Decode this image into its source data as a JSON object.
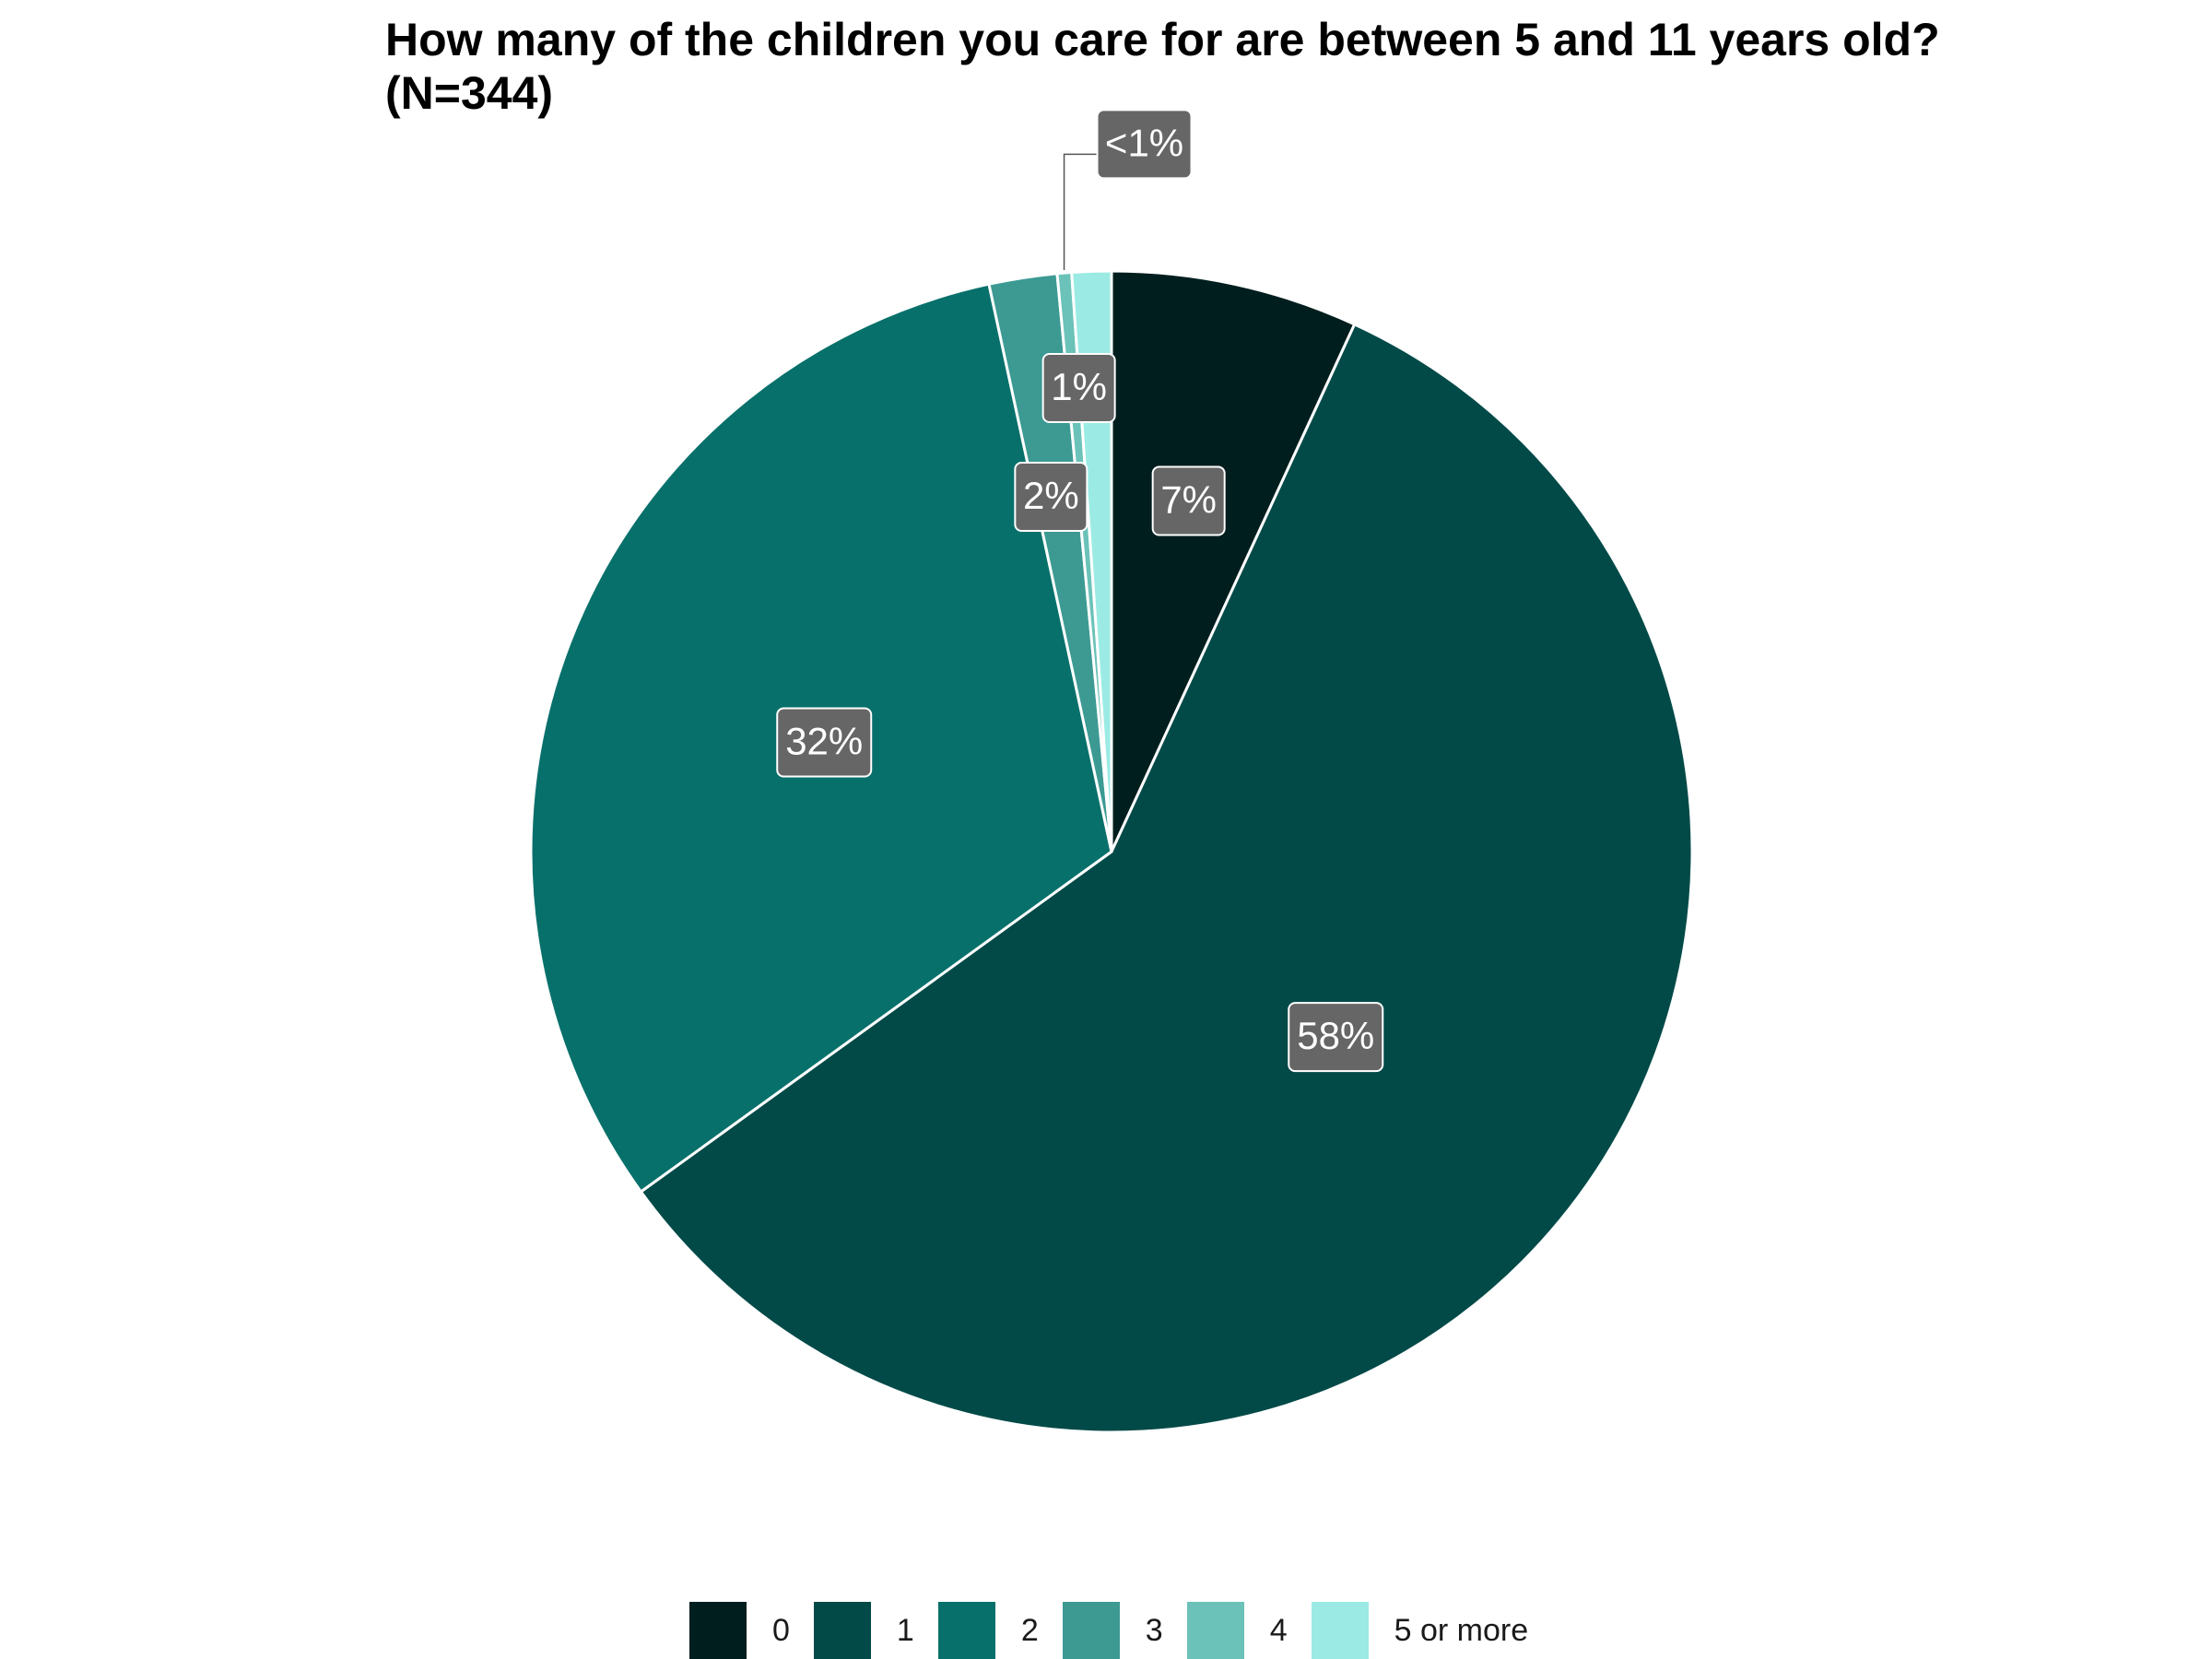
{
  "chart_data": {
    "type": "pie",
    "title": "How many of the children you care for are between 5 and 11 years old? (N=344)",
    "legend_position": "bottom",
    "slices": [
      {
        "label": "0",
        "value": 6.9,
        "display": "7%",
        "color": "#011e1e"
      },
      {
        "label": "1",
        "value": 58.4,
        "display": "58%",
        "color": "#024a48"
      },
      {
        "label": "2",
        "value": 31.7,
        "display": "32%",
        "color": "#08706b"
      },
      {
        "label": "3",
        "value": 1.9,
        "display": "2%",
        "color": "#3c9a93"
      },
      {
        "label": "4",
        "value": 0.4,
        "display": "<1%",
        "color": "#6bc2b8"
      },
      {
        "label": "5 or more",
        "value": 1.1,
        "display": "1%",
        "color": "#9bebe4"
      }
    ]
  },
  "colors": {
    "label_box": "#666666",
    "label_text": "#ffffff",
    "separator": "#ffffff"
  }
}
